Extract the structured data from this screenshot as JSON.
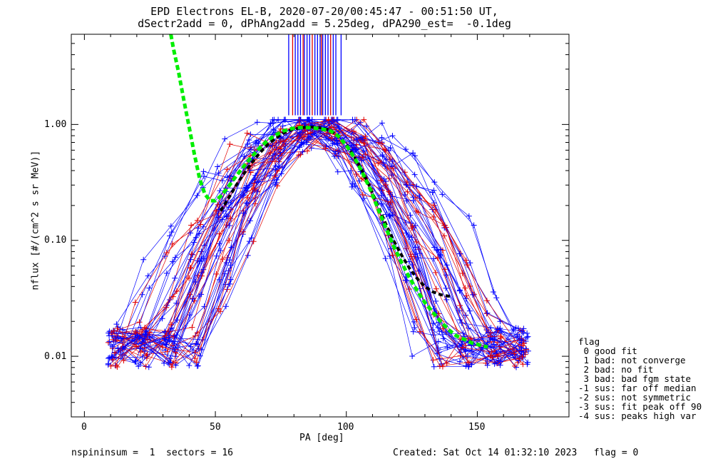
{
  "chart_data": {
    "type": "scatter",
    "title_line1": "EPD Electrons EL-B, 2020-07-20/00:45:47 - 00:51:50 UT,",
    "title_line2": "dSectr2add = 0, dPhAng2add = 5.25deg, dPA290_est=  -0.1deg",
    "xlabel": "PA [deg]",
    "ylabel": "nflux [#/(cm^2 s sr MeV)]",
    "xlim": [
      -5,
      185
    ],
    "ylim": [
      0.003,
      6.0
    ],
    "yscale": "log",
    "x_ticks": [
      "0",
      "50",
      "100",
      "150"
    ],
    "y_ticks": [
      "0.01",
      "0.10",
      "1.00"
    ],
    "series_colors": {
      "blue": "#0000ff",
      "red": "#e00000",
      "fit_green": "#00ee00",
      "fit_black": "#000000"
    },
    "green_fit": {
      "x": [
        33,
        34,
        36,
        38,
        40,
        42,
        44,
        46,
        48,
        50,
        52,
        55,
        58,
        61,
        64,
        67,
        70,
        73,
        76,
        79,
        82,
        85,
        88,
        91,
        94,
        97,
        100,
        103,
        106,
        109,
        112,
        115,
        118,
        121,
        124,
        127,
        130,
        133,
        136,
        139,
        142,
        145,
        148,
        151,
        154
      ],
      "y": [
        6.0,
        4.5,
        2.8,
        1.6,
        0.95,
        0.55,
        0.34,
        0.25,
        0.22,
        0.22,
        0.24,
        0.29,
        0.36,
        0.44,
        0.53,
        0.63,
        0.73,
        0.81,
        0.88,
        0.92,
        0.94,
        0.94,
        0.93,
        0.91,
        0.88,
        0.79,
        0.66,
        0.52,
        0.39,
        0.28,
        0.19,
        0.13,
        0.09,
        0.065,
        0.048,
        0.037,
        0.029,
        0.024,
        0.02,
        0.017,
        0.015,
        0.014,
        0.013,
        0.0125,
        0.012
      ]
    },
    "black_fit": {
      "x": [
        52,
        55,
        58,
        61,
        64,
        67,
        70,
        73,
        76,
        79,
        82,
        85,
        88,
        91,
        94,
        97,
        100,
        103,
        106,
        109,
        112,
        115,
        118,
        121,
        124,
        127,
        130,
        133,
        136,
        139,
        140
      ],
      "y": [
        0.18,
        0.23,
        0.3,
        0.38,
        0.47,
        0.57,
        0.67,
        0.76,
        0.84,
        0.9,
        0.93,
        0.95,
        0.95,
        0.93,
        0.89,
        0.8,
        0.67,
        0.53,
        0.4,
        0.29,
        0.2,
        0.14,
        0.1,
        0.075,
        0.058,
        0.047,
        0.04,
        0.036,
        0.034,
        0.033,
        0.033
      ]
    },
    "top_spikes_x": [
      78,
      79.5,
      80.5,
      81.5,
      82.5,
      83.5,
      84,
      85,
      86,
      87,
      88,
      89,
      90,
      90.5,
      91,
      92,
      93,
      94,
      95,
      96,
      98
    ],
    "top_spikes_y_low": 1.2
  },
  "legend": {
    "title": "flag",
    "items": [
      " 0 good fit",
      " 1 bad: not converge",
      " 2 bad: no fit",
      " 3 bad: bad fgm state",
      "-1 sus: far off median",
      "-2 sus: not symmetric",
      "-3 sus: fit peak off 90",
      "-4 sus: peaks high var"
    ]
  },
  "footer": {
    "left": "nspininsum =  1  sectors = 16",
    "right": "Created: Sat Oct 14 01:32:10 2023   flag = 0"
  }
}
